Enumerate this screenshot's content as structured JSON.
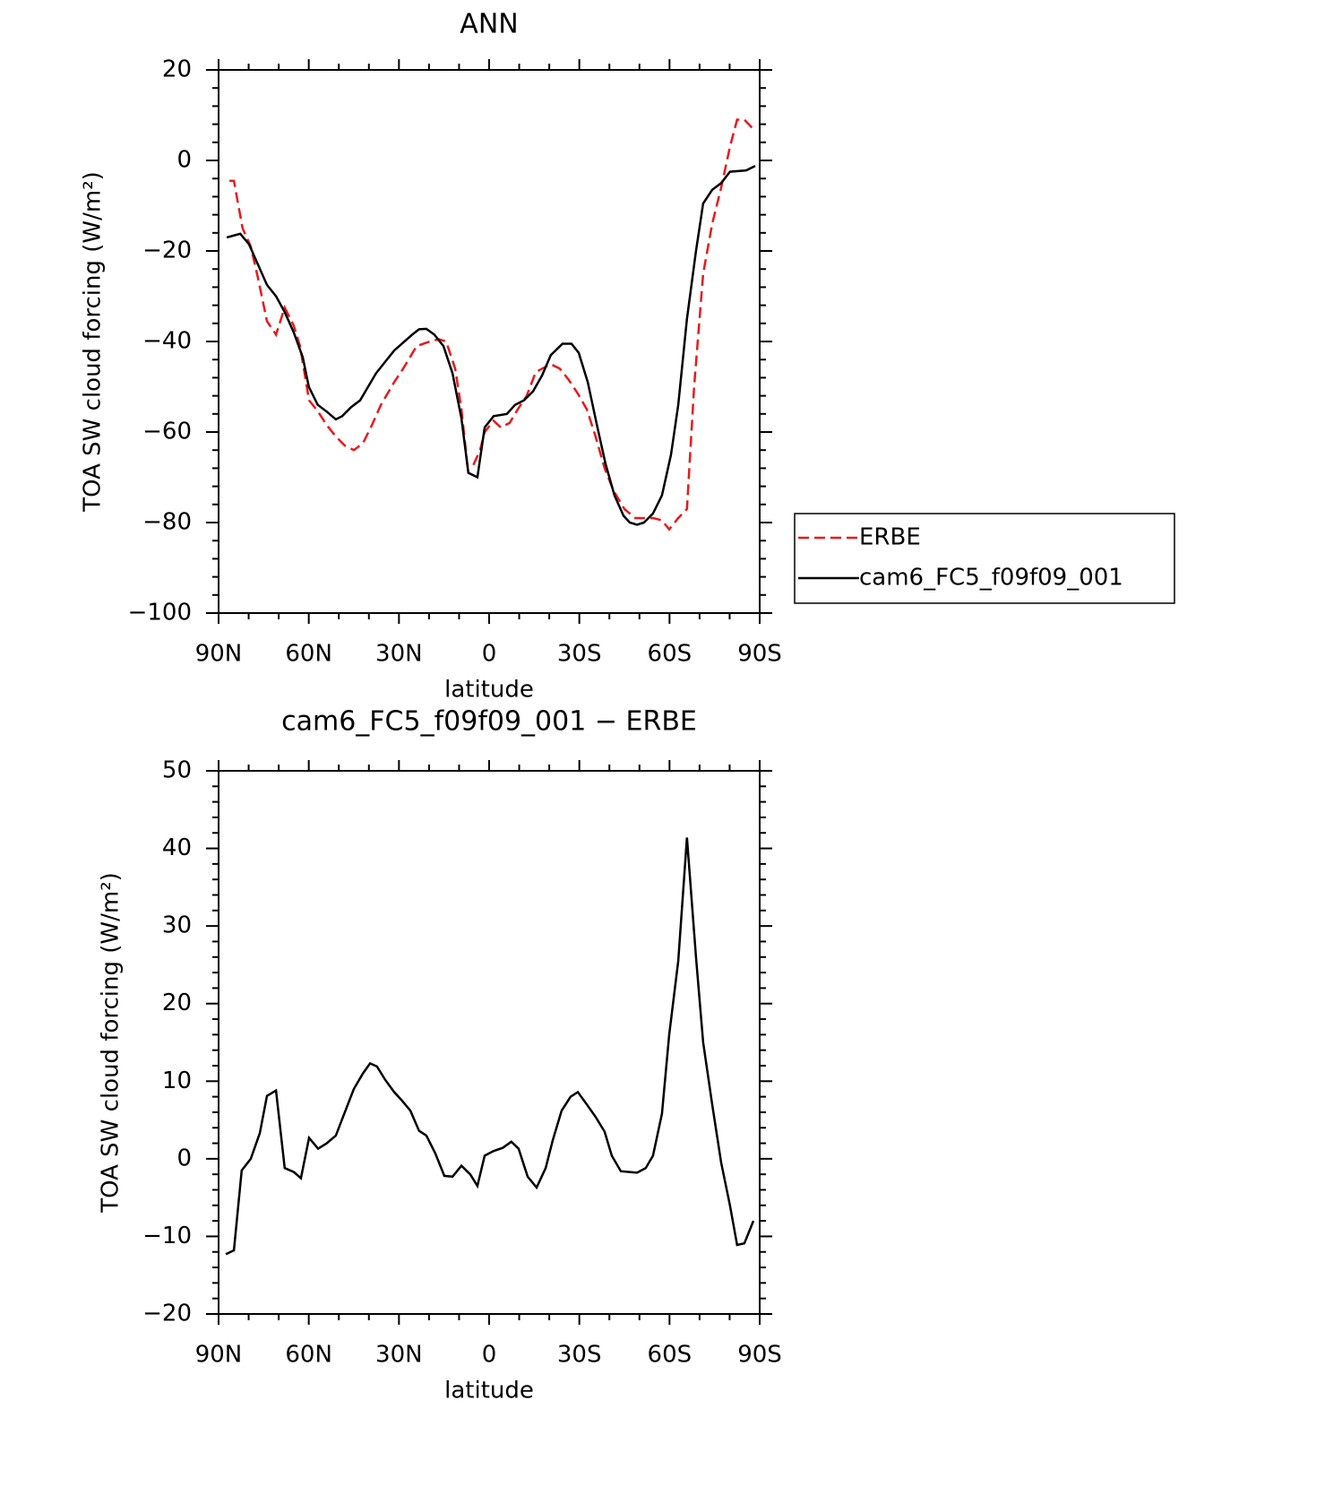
{
  "chart_data": [
    {
      "type": "line",
      "title": "ANN",
      "xlabel": "latitude",
      "ylabel": "TOA SW cloud forcing (W/m²)",
      "xlim": [
        90,
        -90
      ],
      "ylim": [
        -100,
        20
      ],
      "xticks": [
        {
          "value": 90,
          "label": "90N"
        },
        {
          "value": 60,
          "label": "60N"
        },
        {
          "value": 30,
          "label": "30N"
        },
        0,
        {
          "value": -30,
          "label": "30S"
        },
        {
          "value": -60,
          "label": "60S"
        },
        {
          "value": -90,
          "label": "90S"
        }
      ],
      "xminorticks": [
        80,
        70,
        50,
        40,
        20,
        10,
        -10,
        -20,
        -40,
        -50,
        -70,
        -80
      ],
      "yticks": [
        {
          "value": -100,
          "label": "−100"
        },
        {
          "value": -80,
          "label": "−80"
        },
        {
          "value": -60,
          "label": "−60"
        },
        {
          "value": -40,
          "label": "−40"
        },
        {
          "value": -20,
          "label": "−20"
        },
        0,
        20
      ],
      "yminorticks": [
        -96,
        -92,
        -88,
        -84,
        -76,
        -72,
        -68,
        -64,
        -56,
        -52,
        -48,
        -44,
        -36,
        -32,
        -28,
        -24,
        -16,
        -12,
        -8,
        -4,
        4,
        8,
        12,
        16
      ],
      "legend": "right",
      "series": [
        {
          "name": "ERBE",
          "color": "#e8191b",
          "dash": true,
          "x": [
            86.4,
            84.9,
            82,
            79.3,
            76.9,
            73.9,
            70.9,
            68,
            65,
            62.9,
            59.9,
            56.9,
            54,
            51,
            48,
            45,
            42,
            39,
            36,
            31.6,
            28.6,
            24.1,
            19.7,
            16.7,
            14.3,
            11.3,
            9.2,
            7.2,
            5.4,
            3,
            1.5,
            -1.5,
            -3.9,
            -6.8,
            -9.5,
            -12.5,
            -15.5,
            -17.6,
            -20.5,
            -23.5,
            -26.5,
            -29.5,
            -32.5,
            -35.4,
            -38.4,
            -41.4,
            -45,
            -48.6,
            -54.5,
            -57.5,
            -59.9,
            -62.9,
            -65.8,
            -68.2,
            -71.2,
            -74.2,
            -77.2,
            -80.1,
            -82.5,
            -84.9,
            -88.5
          ],
          "values": [
            -4.5,
            -4.5,
            -15,
            -19,
            -26,
            -35.5,
            -38.5,
            -32.5,
            -36.5,
            -41,
            -53,
            -55.5,
            -58.5,
            -61,
            -63,
            -64,
            -62.5,
            -58.5,
            -54,
            -49,
            -46,
            -41,
            -40,
            -39.5,
            -40,
            -46,
            -55,
            -67.5,
            -67.5,
            -64,
            -60,
            -57.5,
            -59,
            -58,
            -55,
            -52,
            -46.8,
            -46,
            -45,
            -46,
            -48.5,
            -51.5,
            -55,
            -61,
            -68,
            -73,
            -77,
            -79,
            -79,
            -79.5,
            -81.5,
            -79,
            -77,
            -50,
            -25,
            -14,
            -6,
            3,
            9,
            9,
            6.5
          ]
        },
        {
          "name": "cam6_FC5_f09f09_001",
          "color": "#000000",
          "dash": false,
          "x": [
            87.3,
            82.8,
            79.9,
            73.9,
            70.9,
            68,
            65,
            62,
            60,
            57,
            54,
            51,
            48.9,
            45.9,
            42.9,
            37.6,
            31.6,
            25.6,
            23.3,
            20.9,
            18.2,
            15.2,
            12.2,
            9.2,
            6.9,
            3.9,
            1.5,
            -1.5,
            -5.9,
            -8.6,
            -11.6,
            -14.6,
            -17.6,
            -20.5,
            -24.4,
            -27.4,
            -29.8,
            -32.8,
            -35.7,
            -38.7,
            -41.7,
            -44.7,
            -46.8,
            -49.2,
            -51.5,
            -54.5,
            -57.5,
            -60.5,
            -62.9,
            -65.8,
            -68.8,
            -71.2,
            -74.2,
            -77.2,
            -80.1,
            -85.5,
            -88.5
          ],
          "values": [
            -17,
            -16.2,
            -18.5,
            -27.5,
            -30,
            -33.5,
            -38,
            -43.5,
            -50,
            -54,
            -55.5,
            -57.2,
            -56.5,
            -54.5,
            -53,
            -47,
            -42,
            -38.5,
            -37.3,
            -37.2,
            -38.5,
            -41,
            -47,
            -57,
            -69,
            -70,
            -59,
            -56.5,
            -56,
            -54,
            -53,
            -51,
            -47.5,
            -43,
            -40.5,
            -40.5,
            -42.5,
            -49,
            -58,
            -67,
            -74,
            -78.5,
            -80,
            -80.5,
            -80,
            -78,
            -74,
            -65,
            -54,
            -35,
            -20,
            -9.5,
            -6.5,
            -5,
            -2.5,
            -2.2,
            -1.2
          ]
        }
      ]
    },
    {
      "type": "line",
      "title": "cam6_FC5_f09f09_001 − ERBE",
      "xlabel": "latitude",
      "ylabel": "TOA SW cloud forcing (W/m²)",
      "xlim": [
        90,
        -90
      ],
      "ylim": [
        -20,
        50
      ],
      "xticks": [
        {
          "value": 90,
          "label": "90N"
        },
        {
          "value": 60,
          "label": "60N"
        },
        {
          "value": 30,
          "label": "30N"
        },
        0,
        {
          "value": -30,
          "label": "30S"
        },
        {
          "value": -60,
          "label": "60S"
        },
        {
          "value": -90,
          "label": "90S"
        }
      ],
      "xminorticks": [
        80,
        70,
        50,
        40,
        20,
        10,
        -10,
        -20,
        -40,
        -50,
        -70,
        -80
      ],
      "yticks": [
        {
          "value": -20,
          "label": "−20"
        },
        {
          "value": -10,
          "label": "−10"
        },
        0,
        10,
        20,
        30,
        40,
        50
      ],
      "yminorticks": [
        -18,
        -16,
        -14,
        -12,
        -8,
        -6,
        -4,
        -2,
        2,
        4,
        6,
        8,
        12,
        14,
        16,
        18,
        22,
        24,
        26,
        28,
        32,
        34,
        36,
        38,
        42,
        44,
        46,
        48
      ],
      "series": [
        {
          "color": "#000000",
          "dash": false,
          "x": [
            87.6,
            84.9,
            82.3,
            79.3,
            76.3,
            73.9,
            70.9,
            68,
            65,
            62.6,
            59.9,
            56.9,
            54,
            51,
            48,
            45,
            42,
            39.6,
            37.3,
            34.6,
            31.6,
            29.2,
            26.2,
            23.3,
            20.9,
            17.9,
            14.9,
            12.2,
            9.2,
            6.3,
            3.9,
            1.5,
            -1.5,
            -4.5,
            -7.4,
            -9.8,
            -12.8,
            -15.8,
            -18.8,
            -21.1,
            -24.1,
            -27.1,
            -29.5,
            -32.5,
            -35.4,
            -38.4,
            -40.8,
            -43.8,
            -49.2,
            -52.1,
            -54.5,
            -57.5,
            -59.9,
            -62.9,
            -65.8,
            -68.8,
            -71.2,
            -74.2,
            -77.2,
            -80.1,
            -82.5,
            -84.9,
            -87.9
          ],
          "values": [
            -12.3,
            -11.8,
            -1.5,
            0,
            3.3,
            8.1,
            8.8,
            -1.2,
            -1.7,
            -2.5,
            2.7,
            1.3,
            2,
            3,
            6,
            9,
            11,
            12.3,
            11.9,
            10.2,
            8.6,
            7.6,
            6.2,
            3.6,
            3,
            0.7,
            -2.2,
            -2.3,
            -0.9,
            -2,
            -3.5,
            0.4,
            1,
            1.4,
            2.2,
            1.3,
            -2.3,
            -3.7,
            -1.2,
            2.3,
            6.2,
            8,
            8.6,
            7,
            5.4,
            3.5,
            0.4,
            -1.6,
            -1.8,
            -1.2,
            0.4,
            5.8,
            16,
            25.5,
            41.4,
            26,
            15,
            7,
            -0.5,
            -6,
            -11.1,
            -10.9,
            -8
          ]
        }
      ]
    }
  ]
}
